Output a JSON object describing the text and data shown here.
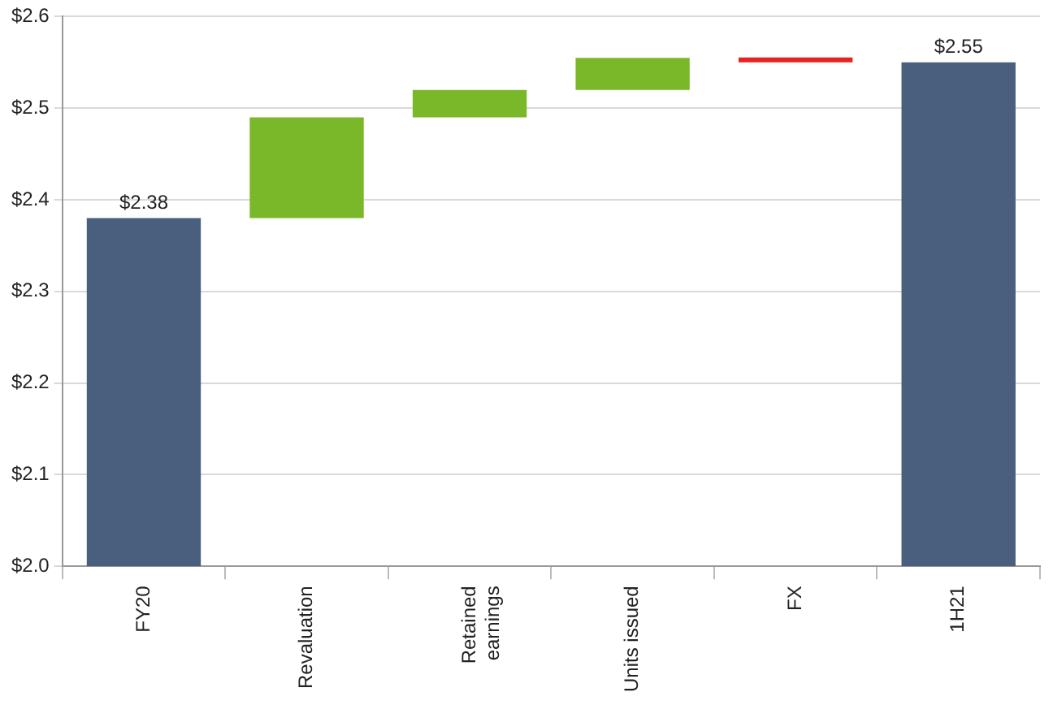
{
  "chart_data": {
    "type": "bar",
    "categories": [
      "FY20",
      "Revaluation",
      "Retained earnings",
      "Units issued",
      "FX",
      "1H21"
    ],
    "base": [
      2.0,
      2.38,
      2.49,
      2.52,
      2.555,
      2.0
    ],
    "values": [
      0.38,
      0.11,
      0.03,
      0.035,
      -0.005,
      0.55
    ],
    "colors": [
      "#4a5f7e",
      "#7ab829",
      "#7ab829",
      "#7ab829",
      "#e8231f",
      "#4a5f7e"
    ],
    "value_labels": [
      "$2.38",
      null,
      null,
      null,
      null,
      "$2.55"
    ],
    "ylim": [
      2.0,
      2.6
    ],
    "yticks": [
      {
        "value": 2.0,
        "label": "$2.0"
      },
      {
        "value": 2.1,
        "label": "$2.1"
      },
      {
        "value": 2.2,
        "label": "$2.2"
      },
      {
        "value": 2.3,
        "label": "$2.3"
      },
      {
        "value": 2.4,
        "label": "$2.4"
      },
      {
        "value": 2.5,
        "label": "$2.5"
      },
      {
        "value": 2.6,
        "label": "$2.6"
      }
    ],
    "grid": "y",
    "legend": false
  }
}
